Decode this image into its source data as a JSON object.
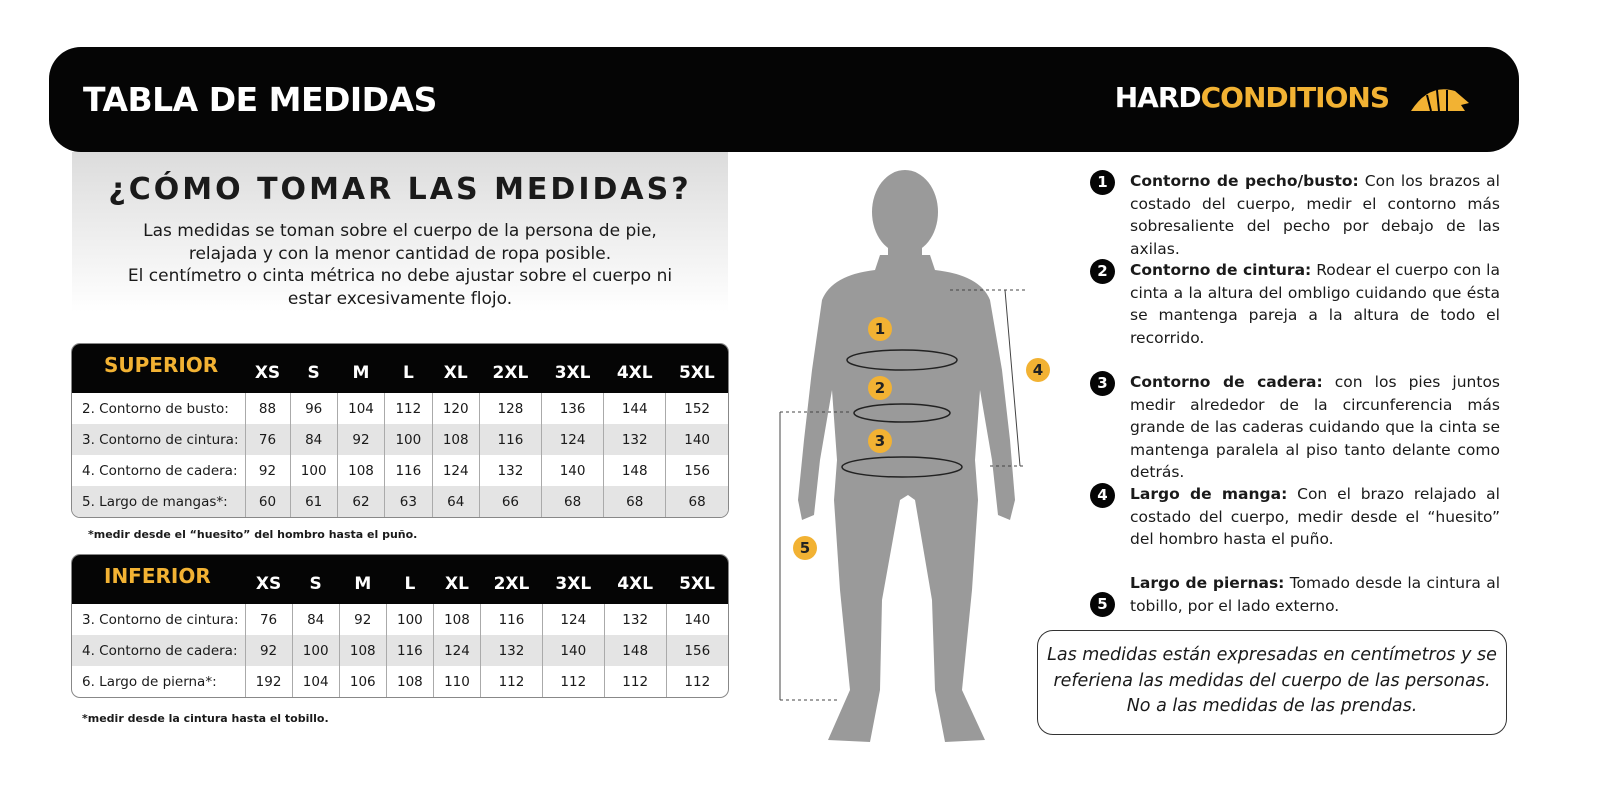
{
  "header": {
    "title": "TABLA DE MEDIDAS",
    "brand": {
      "hard": "HARD",
      "conditions": "CONDITIONS"
    }
  },
  "howto": {
    "title": "¿CÓMO TOMAR LAS MEDIDAS?",
    "lines": [
      "Las medidas se toman sobre el cuerpo de la persona de pie,",
      "relajada y con la menor cantidad de ropa posible.",
      "El centímetro o cinta métrica no debe ajustar sobre el cuerpo ni",
      "estar excesivamente flojo."
    ]
  },
  "tables": [
    {
      "label": "SUPERIOR",
      "sizes": [
        "XS",
        "S",
        "M",
        "L",
        "XL",
        "2XL",
        "3XL",
        "4XL",
        "5XL"
      ],
      "rows": [
        {
          "label": "2. Contorno de busto:",
          "values": [
            88,
            96,
            104,
            112,
            120,
            128,
            136,
            144,
            152
          ]
        },
        {
          "label": "3. Contorno de cintura:",
          "values": [
            76,
            84,
            92,
            100,
            108,
            116,
            124,
            132,
            140
          ]
        },
        {
          "label": "4. Contorno de cadera:",
          "values": [
            92,
            100,
            108,
            116,
            124,
            132,
            140,
            148,
            156
          ]
        },
        {
          "label": "5. Largo de mangas*:",
          "values": [
            60,
            61,
            62,
            63,
            64,
            66,
            68,
            68,
            68
          ]
        }
      ],
      "note": "*medir desde el “huesito” del hombro hasta el puño."
    },
    {
      "label": "INFERIOR",
      "sizes": [
        "XS",
        "S",
        "M",
        "L",
        "XL",
        "2XL",
        "3XL",
        "4XL",
        "5XL"
      ],
      "rows": [
        {
          "label": "3. Contorno de cintura:",
          "values": [
            76,
            84,
            92,
            100,
            108,
            116,
            124,
            132,
            140
          ]
        },
        {
          "label": "4. Contorno de cadera:",
          "values": [
            92,
            100,
            108,
            116,
            124,
            132,
            140,
            148,
            156
          ]
        },
        {
          "label": "6. Largo de pierna*:",
          "values": [
            192,
            104,
            106,
            108,
            110,
            112,
            112,
            112,
            112
          ]
        }
      ],
      "note": "*medir desde la cintura hasta el tobillo."
    }
  ],
  "instructions": [
    {
      "number": 1,
      "title": "Contorno de pecho/busto:",
      "text": "Con los brazos al costado del cuerpo, medir el contorno más sobresaliente del pecho por debajo de las axilas."
    },
    {
      "number": 2,
      "title": "Contorno de cintura:",
      "text": "Rodear el cuerpo con la cinta a la altura del ombligo cuidando que ésta se mantenga pareja a la altura de todo el recorrido."
    },
    {
      "number": 3,
      "title": "Contorno de cadera:",
      "text": "con los pies juntos medir alrededor de la circunferencia más grande de las caderas cuidando que la cinta se mantenga paralela al piso tanto delante como detrás."
    },
    {
      "number": 4,
      "title": "Largo de manga:",
      "text": "Con el brazo relajado al costado del cuerpo, medir desde el “huesito” del hombro hasta el puño."
    },
    {
      "number": 5,
      "title": "Largo de piernas:",
      "text": "Tomado desde la cintura al tobillo, por el lado externo."
    }
  ],
  "disclaimer": [
    "Las medidas están expresadas en centímetros y se",
    "referiena las medidas del cuerpo de las personas.",
    "No a las medidas de las prendas."
  ]
}
